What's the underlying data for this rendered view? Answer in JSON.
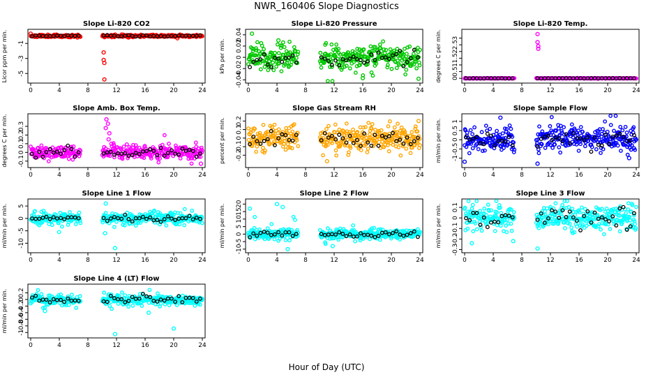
{
  "figure": {
    "title": "NWR_160406  Slope Diagnostics",
    "xlabel": "Hour of Day (UTC)"
  },
  "chart_data": [
    {
      "type": "scatter",
      "title": "Slope Li-820 CO2",
      "ylabel": "Licor ppm per min.",
      "xlim": [
        0,
        24
      ],
      "ylim": [
        -6,
        0.6
      ],
      "yticks": [
        -5,
        -3,
        -1
      ],
      "xticks": [
        0,
        4,
        8,
        12,
        16,
        20,
        24
      ],
      "color": "#ff0000",
      "gap": [
        7,
        10
      ],
      "outliers": [
        [
          0,
          0.3
        ],
        [
          10.2,
          -2.2
        ],
        [
          10.2,
          -3.2
        ],
        [
          10.3,
          -3.6
        ],
        [
          10.3,
          -5.8
        ]
      ],
      "seed": 11,
      "center": 0,
      "spread": 0.08,
      "mean_spread": 0.05,
      "outlier_rate": 0.01
    },
    {
      "type": "scatter",
      "title": "Slope Li-820 Pressure",
      "ylabel": "kPa per min.",
      "xlim": [
        0,
        24
      ],
      "ylim": [
        -0.042,
        0.046
      ],
      "yticks": [
        -0.04,
        -0.02,
        0,
        0.02,
        0.04
      ],
      "xticks": [
        0,
        4,
        8,
        12,
        16,
        20,
        24
      ],
      "color": "#00c800",
      "gap": [
        7,
        10
      ],
      "outliers": [
        [
          0.5,
          0.042
        ],
        [
          4.2,
          0.03
        ],
        [
          16,
          -0.037
        ],
        [
          23.8,
          -0.038
        ]
      ],
      "seed": 23,
      "center": 0,
      "spread": 0.011,
      "mean_spread": 0.008,
      "outlier_rate": 0.02
    },
    {
      "type": "scatter",
      "title": "Slope Li-820 Temp.",
      "ylabel": "degrees C per min.",
      "xlim": [
        0,
        24
      ],
      "ylim": [
        -0.2,
        3.5
      ],
      "yticks": [
        0,
        0.5,
        1.0,
        1.5,
        2.0,
        2.5,
        3.0
      ],
      "xticks": [
        0,
        4,
        8,
        12,
        16,
        20,
        24
      ],
      "color": "#ff00ff",
      "gap": [
        7,
        10
      ],
      "outliers": [
        [
          10.2,
          3.3
        ],
        [
          10.2,
          2.7
        ],
        [
          10.3,
          2.4
        ],
        [
          10.3,
          2.2
        ]
      ],
      "seed": 37,
      "center": 0,
      "spread": 0.01,
      "mean_spread": 0.005,
      "outlier_rate": 0
    },
    {
      "type": "scatter",
      "title": "Slope Amb. Box Temp.",
      "ylabel": "degrees C per min.",
      "xlim": [
        0,
        24
      ],
      "ylim": [
        -0.15,
        0.42
      ],
      "yticks": [
        -0.1,
        0,
        0.1,
        0.2,
        0.3
      ],
      "xticks": [
        0,
        4,
        8,
        12,
        16,
        20,
        24
      ],
      "color": "#ff00ff",
      "gap": [
        7,
        10
      ],
      "outliers": [
        [
          10.6,
          0.38
        ],
        [
          10.8,
          0.33
        ],
        [
          10.5,
          0.28
        ],
        [
          11,
          0.22
        ],
        [
          10.9,
          0.15
        ],
        [
          11.3,
          0.1
        ],
        [
          11.6,
          0.05
        ],
        [
          23.8,
          -0.13
        ]
      ],
      "seed": 41,
      "center": 0,
      "spread": 0.04,
      "mean_spread": 0.03,
      "outlier_rate": 0.01
    },
    {
      "type": "scatter",
      "title": "Slope Gas Stream RH",
      "ylabel": "percent per min.",
      "xlim": [
        0,
        24
      ],
      "ylim": [
        -0.32,
        0.26
      ],
      "yticks": [
        -0.2,
        -0.1,
        0,
        0.1,
        0.2
      ],
      "xticks": [
        0,
        4,
        8,
        12,
        16,
        20,
        24
      ],
      "color": "#ffa500",
      "gap": [
        7,
        10
      ],
      "outliers": [
        [
          11,
          -0.27
        ],
        [
          23.8,
          0.2
        ]
      ],
      "seed": 53,
      "center": 0,
      "spread": 0.08,
      "mean_spread": 0.05,
      "outlier_rate": 0.01
    },
    {
      "type": "scatter",
      "title": "Slope Sample Flow",
      "ylabel": "ml/min per min.",
      "xlim": [
        0,
        24
      ],
      "ylim": [
        -1.4,
        1.3
      ],
      "yticks": [
        -1.0,
        -0.5,
        0.0,
        0.5,
        1.0
      ],
      "xticks": [
        0,
        4,
        8,
        12,
        16,
        20,
        24
      ],
      "color": "#0000ff",
      "gap": [
        7,
        10
      ],
      "outliers": [
        [
          0,
          -1.2
        ],
        [
          10.2,
          -1.3
        ],
        [
          5,
          1.2
        ],
        [
          23,
          -1.0
        ]
      ],
      "seed": 67,
      "center": 0,
      "spread": 0.3,
      "mean_spread": 0.2,
      "outlier_rate": 0.02
    },
    {
      "type": "scatter",
      "title": "Slope Line 1 Flow",
      "ylabel": "ml/min per min.",
      "xlim": [
        0,
        24
      ],
      "ylim": [
        -13,
        7
      ],
      "yticks": [
        -10,
        -5,
        0,
        5
      ],
      "xticks": [
        0,
        4,
        8,
        12,
        16,
        20,
        24
      ],
      "color": "#00ffff",
      "gap": [
        7,
        10
      ],
      "outliers": [
        [
          10.5,
          6
        ],
        [
          10.4,
          -6
        ],
        [
          11.8,
          -12
        ]
      ],
      "seed": 71,
      "center": 0,
      "spread": 1.3,
      "mean_spread": 0.6,
      "outlier_rate": 0.01
    },
    {
      "type": "scatter",
      "title": "Slope Line 2 Flow",
      "ylabel": "ml/min per min.",
      "xlim": [
        0,
        24
      ],
      "ylim": [
        -11,
        22
      ],
      "yticks": [
        -10,
        -5,
        0,
        5,
        10,
        15,
        20
      ],
      "xticks": [
        0,
        4,
        8,
        12,
        16,
        20,
        24
      ],
      "color": "#00ffff",
      "gap": [
        7,
        10
      ],
      "outliers": [
        [
          0.2,
          17
        ],
        [
          4,
          20
        ],
        [
          4.8,
          18
        ],
        [
          11.8,
          -8
        ],
        [
          5.5,
          -10
        ]
      ],
      "seed": 83,
      "center": 0,
      "spread": 1.6,
      "mean_spread": 1.2,
      "outlier_rate": 0.04
    },
    {
      "type": "scatter",
      "title": "Slope Line 3 Flow",
      "ylabel": "ml/min per min.",
      "xlim": [
        0,
        24
      ],
      "ylim": [
        -0.31,
        0.16
      ],
      "yticks": [
        -0.3,
        -0.2,
        -0.1,
        0,
        0.1
      ],
      "xticks": [
        0,
        4,
        8,
        12,
        16,
        20,
        24
      ],
      "color": "#00ffff",
      "gap": [
        7,
        10
      ],
      "outliers": [
        [
          10.2,
          -0.29
        ],
        [
          1,
          -0.24
        ],
        [
          6.8,
          -0.22
        ]
      ],
      "seed": 97,
      "center": 0,
      "spread": 0.06,
      "mean_spread": 0.05,
      "outlier_rate": 0.03
    },
    {
      "type": "scatter",
      "title": "Slope Line 4 (LT) Flow",
      "ylabel": "ml/min per min.",
      "xlim": [
        0,
        24
      ],
      "ylim": [
        -1.1,
        0.4
      ],
      "yticks": [
        -1.0,
        -0.8,
        -0.6,
        -0.4,
        -0.2,
        0.0,
        0.2
      ],
      "xticks": [
        0,
        4,
        8,
        12,
        16,
        20,
        24
      ],
      "color": "#00ffff",
      "gap": [
        7,
        10
      ],
      "outliers": [
        [
          11.8,
          -1.05
        ],
        [
          20,
          -0.88
        ],
        [
          2,
          -0.35
        ],
        [
          16.5,
          -0.4
        ]
      ],
      "seed": 101,
      "center": 0,
      "spread": 0.08,
      "mean_spread": 0.06,
      "outlier_rate": 0.01
    }
  ]
}
